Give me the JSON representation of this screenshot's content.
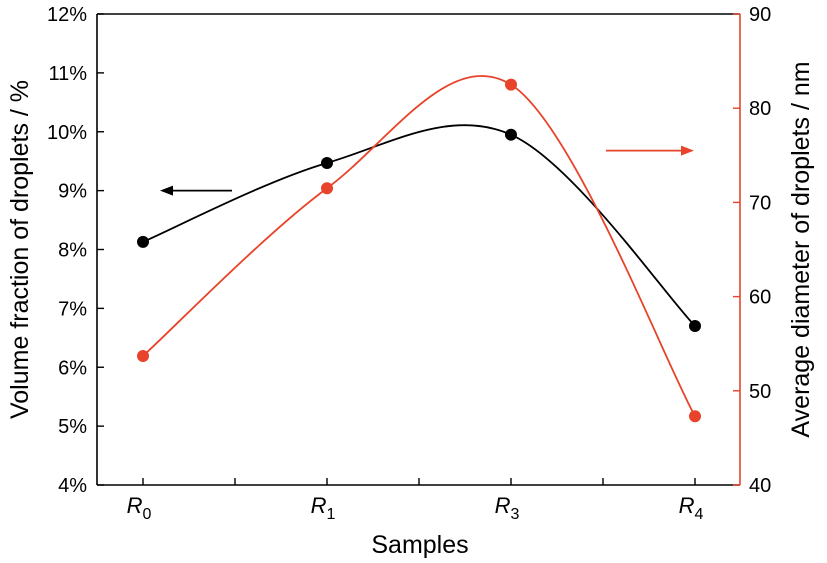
{
  "colors": {
    "left_series": "#000000",
    "right_series": "#e8432b",
    "left_axis": "#000000",
    "right_axis": "#e8432b"
  },
  "chart_data": {
    "type": "line",
    "xlabel": "Samples",
    "categories": [
      {
        "base": "R",
        "sub": "0"
      },
      {
        "base": "R",
        "sub": "1"
      },
      {
        "base": "R",
        "sub": "3"
      },
      {
        "base": "R",
        "sub": "4"
      }
    ],
    "left_axis": {
      "label": "Volume fraction of droplets / %",
      "ylim": [
        4,
        12
      ],
      "ticks": [
        4,
        5,
        6,
        7,
        8,
        9,
        10,
        11,
        12
      ],
      "tick_labels": [
        "4%",
        "5%",
        "6%",
        "7%",
        "8%",
        "9%",
        "10%",
        "11%",
        "12%"
      ]
    },
    "right_axis": {
      "label": "Average diameter of droplets / nm",
      "ylim": [
        40,
        90
      ],
      "ticks": [
        40,
        50,
        60,
        70,
        80,
        90
      ],
      "tick_labels": [
        "40",
        "50",
        "60",
        "70",
        "80",
        "90"
      ]
    },
    "series": [
      {
        "axis": "left",
        "color": "#000000",
        "values": [
          8.13,
          9.47,
          9.95,
          6.7
        ]
      },
      {
        "axis": "right",
        "color": "#e8432b",
        "values": [
          53.7,
          71.5,
          82.5,
          47.3
        ]
      }
    ],
    "annotations": [
      {
        "type": "arrow",
        "direction": "left",
        "points_to": "left_axis",
        "color": "#000000",
        "y": 9.0
      },
      {
        "type": "arrow",
        "direction": "right",
        "points_to": "right_axis",
        "color": "#e8432b",
        "y": 75.5
      }
    ],
    "grid": false,
    "legend": "none"
  }
}
